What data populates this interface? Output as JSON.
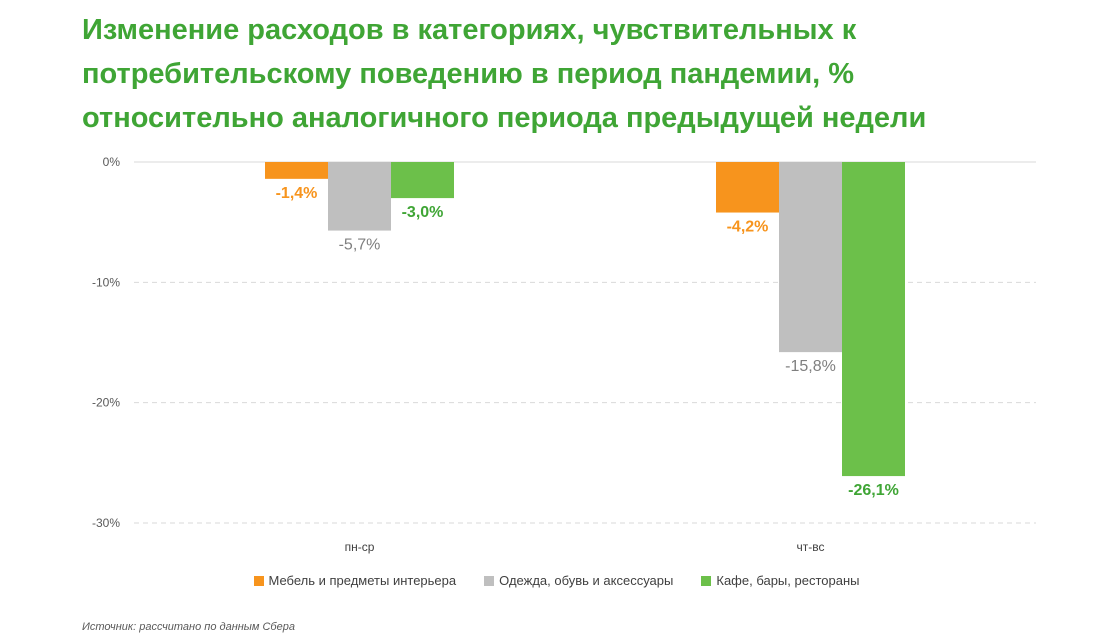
{
  "title_lines": [
    "Изменение расходов в категориях, чувствительных к",
    "потребительскому поведению в период пандемии, %",
    "относительно аналогичного периода предыдущей недели"
  ],
  "source": "Источник: рассчитано по данным Сбера",
  "colors": {
    "title": "#3fa535",
    "furniture": "#f7941d",
    "clothing": "#bfbfbf",
    "cafe": "#6cc04a"
  },
  "chart_data": {
    "type": "bar",
    "title": "Изменение расходов в категориях, чувствительных к потребительскому поведению в период пандемии, % относительно аналогичного периода предыдущей недели",
    "categories": [
      "пн-ср",
      "чт-вс"
    ],
    "series": [
      {
        "name": "Мебель и предметы интерьера",
        "color": "#f7941d",
        "label_color": "#f7941d",
        "values": [
          -1.4,
          -4.2
        ],
        "labels": [
          "-1,4%",
          "-4,2%"
        ]
      },
      {
        "name": "Одежда, обувь и аксессуары",
        "color": "#bfbfbf",
        "label_color": "#7f7f7f",
        "values": [
          -5.7,
          -15.8
        ],
        "labels": [
          "-5,7%",
          "-15,8%"
        ]
      },
      {
        "name": "Кафе, бары, рестораны",
        "color": "#6cc04a",
        "label_color": "#3fa535",
        "values": [
          -3.0,
          -26.1
        ],
        "labels": [
          "-3,0%",
          "-26,1%"
        ]
      }
    ],
    "ylim": [
      -30,
      0
    ],
    "yticks": [
      0,
      -10,
      -20,
      -30
    ],
    "ytick_labels": [
      "0%",
      "-10%",
      "-20%",
      "-30%"
    ],
    "xlabel": "",
    "ylabel": "",
    "grid": true,
    "legend": "bottom"
  }
}
